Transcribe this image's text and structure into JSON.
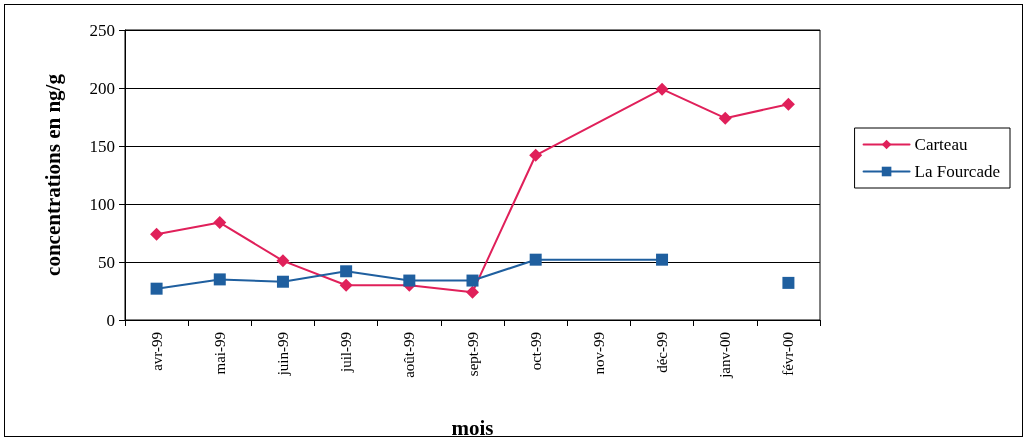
{
  "chart_data": {
    "type": "line",
    "xlabel": "mois",
    "ylabel": "concentrations en ng/g",
    "categories": [
      "avr-99",
      "mai-99",
      "juin-99",
      "juil-99",
      "août-99",
      "sept-99",
      "oct-99",
      "nov-99",
      "déc-99",
      "janv-00",
      "févr-00"
    ],
    "series": [
      {
        "name": "Carteau",
        "color": "#e0205a",
        "marker": "diamond",
        "x": [
          "avr-99",
          "mai-99",
          "juin-99",
          "juil-99",
          "août-99",
          "sept-99",
          "oct-99",
          "déc-99",
          "janv-00",
          "févr-00"
        ],
        "values": [
          74,
          84,
          51,
          30,
          30,
          24,
          142,
          199,
          174,
          186
        ]
      },
      {
        "name": "La Fourcade",
        "color": "#1f5f9f",
        "marker": "square",
        "x": [
          "avr-99",
          "mai-99",
          "juin-99",
          "juil-99",
          "août-99",
          "sept-99",
          "oct-99",
          "déc-99",
          "janv-00",
          "févr-00"
        ],
        "values": [
          27,
          35,
          33,
          42,
          34,
          34,
          52,
          52,
          null,
          32
        ]
      }
    ],
    "ylim": [
      0,
      250
    ],
    "yticks": [
      0,
      50,
      100,
      150,
      200,
      250
    ],
    "grid": "y",
    "legend": "right",
    "line_style": "solid"
  }
}
